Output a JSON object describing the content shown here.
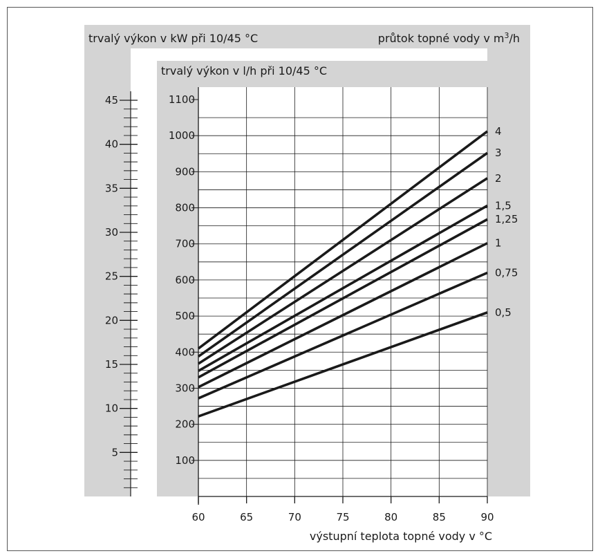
{
  "chart_data": {
    "type": "line",
    "title_left_outer": "trvalý výkon v kW při 10/45 °C",
    "title_right": "průtok topné vody v m",
    "title_right_sup": "3",
    "title_right_tail": "/h",
    "title_inner": "trvalý výkon v l/h při 10/45 °C",
    "xlabel": "výstupní teplota topné vody v °C",
    "x_ticks": [
      "60",
      "65",
      "70",
      "75",
      "80",
      "85",
      "90"
    ],
    "xlim": [
      60,
      90
    ],
    "y_ticks": [
      "100",
      "200",
      "300",
      "400",
      "500",
      "600",
      "700",
      "800",
      "900",
      "1000",
      "1100"
    ],
    "ylim": [
      0,
      1100
    ],
    "y2_ticks": [
      "5",
      "10",
      "15",
      "20",
      "25",
      "30",
      "35",
      "40",
      "45"
    ],
    "y2lim": [
      0,
      45
    ],
    "grid": true,
    "series": [
      {
        "name": "4",
        "x": [
          60,
          90
        ],
        "y": [
          410,
          1012
        ]
      },
      {
        "name": "3",
        "x": [
          60,
          90
        ],
        "y": [
          388,
          952
        ]
      },
      {
        "name": "2",
        "x": [
          60,
          90
        ],
        "y": [
          368,
          882
        ]
      },
      {
        "name": "1,5",
        "x": [
          60,
          90
        ],
        "y": [
          348,
          806
        ]
      },
      {
        "name": "1,25",
        "x": [
          60,
          90
        ],
        "y": [
          330,
          768
        ]
      },
      {
        "name": "1",
        "x": [
          60,
          90
        ],
        "y": [
          303,
          702
        ]
      },
      {
        "name": "0,75",
        "x": [
          60,
          90
        ],
        "y": [
          272,
          620
        ]
      },
      {
        "name": "0,5",
        "x": [
          60,
          90
        ],
        "y": [
          222,
          510
        ]
      }
    ],
    "colors": {
      "panel": "#d4d4d4",
      "line": "#1a1a1a",
      "grid": "#1a1a1a"
    }
  }
}
